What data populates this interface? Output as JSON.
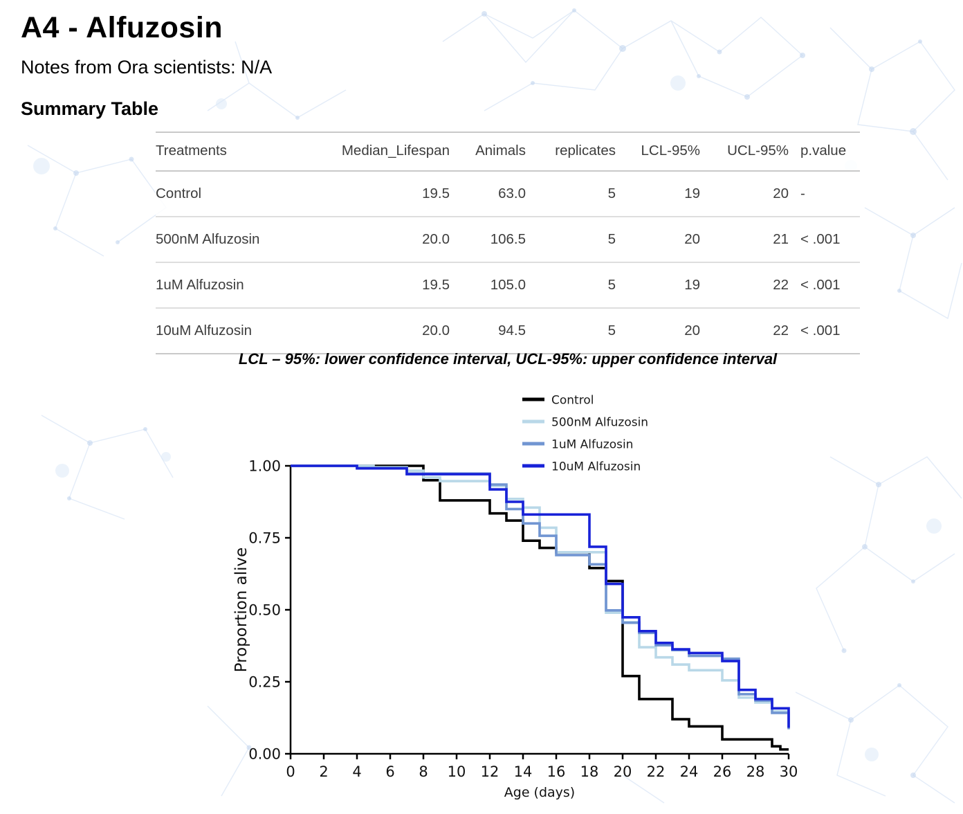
{
  "page": {
    "title": "A4 - Alfuzosin",
    "notes": "Notes from Ora scientists: N/A",
    "section_heading": "Summary Table",
    "footnote": "LCL – 95%: lower confidence interval, UCL-95%: upper confidence interval"
  },
  "summary_table": {
    "columns": [
      "Treatments",
      "Median_Lifespan",
      "Animals",
      "replicates",
      "LCL-95%",
      "UCL-95%",
      "p.value"
    ],
    "rows": [
      [
        "Control",
        "19.5",
        "63.0",
        "5",
        "19",
        "20",
        "-"
      ],
      [
        "500nM Alfuzosin",
        "20.0",
        "106.5",
        "5",
        "20",
        "21",
        "< .001"
      ],
      [
        "1uM Alfuzosin",
        "19.5",
        "105.0",
        "5",
        "19",
        "22",
        "< .001"
      ],
      [
        "10uM Alfuzosin",
        "20.0",
        "94.5",
        "5",
        "20",
        "22",
        "< .001"
      ]
    ]
  },
  "chart_data": {
    "type": "line",
    "subtype": "kaplan-meier-step",
    "title": "",
    "xlabel": "Age (days)",
    "ylabel": "Proportion alive",
    "xlim": [
      0,
      30
    ],
    "ylim": [
      0.0,
      1.0
    ],
    "x_ticks": [
      0,
      2,
      4,
      6,
      8,
      10,
      12,
      14,
      16,
      18,
      20,
      22,
      24,
      26,
      28,
      30
    ],
    "y_ticks": [
      "0.00",
      "0.25",
      "0.50",
      "0.75",
      "1.00"
    ],
    "grid": false,
    "legend_position": "top-right",
    "series": [
      {
        "name": "Control",
        "color": "#000000",
        "steps": [
          [
            0,
            1.0
          ],
          [
            8,
            0.95
          ],
          [
            9,
            0.88
          ],
          [
            12,
            0.835
          ],
          [
            13,
            0.81
          ],
          [
            14,
            0.74
          ],
          [
            15,
            0.715
          ],
          [
            16,
            0.7
          ],
          [
            18,
            0.645
          ],
          [
            19,
            0.6
          ],
          [
            20,
            0.27
          ],
          [
            21,
            0.19
          ],
          [
            23,
            0.12
          ],
          [
            24,
            0.095
          ],
          [
            26,
            0.05
          ],
          [
            29,
            0.026
          ],
          [
            29.5,
            0.015
          ]
        ]
      },
      {
        "name": "500nM Alfuzosin",
        "color": "#b9d8e8",
        "steps": [
          [
            0,
            1.0
          ],
          [
            5,
            0.995
          ],
          [
            7,
            0.983
          ],
          [
            8,
            0.96
          ],
          [
            9,
            0.947
          ],
          [
            12,
            0.93
          ],
          [
            13,
            0.885
          ],
          [
            14,
            0.855
          ],
          [
            15,
            0.785
          ],
          [
            16,
            0.7
          ],
          [
            19,
            0.49
          ],
          [
            20,
            0.457
          ],
          [
            21,
            0.37
          ],
          [
            22,
            0.335
          ],
          [
            23,
            0.31
          ],
          [
            24,
            0.29
          ],
          [
            26,
            0.255
          ],
          [
            27,
            0.195
          ],
          [
            28,
            0.178
          ],
          [
            29,
            0.147
          ]
        ]
      },
      {
        "name": "1uM Alfuzosin",
        "color": "#7195d2",
        "steps": [
          [
            0,
            1.0
          ],
          [
            4,
            0.993
          ],
          [
            7,
            0.973
          ],
          [
            12,
            0.935
          ],
          [
            13,
            0.85
          ],
          [
            14,
            0.8
          ],
          [
            15,
            0.757
          ],
          [
            16,
            0.69
          ],
          [
            18,
            0.658
          ],
          [
            19,
            0.498
          ],
          [
            20,
            0.455
          ],
          [
            21,
            0.42
          ],
          [
            22,
            0.377
          ],
          [
            23,
            0.36
          ],
          [
            24,
            0.34
          ],
          [
            26,
            0.33
          ],
          [
            27,
            0.207
          ],
          [
            28,
            0.185
          ],
          [
            29,
            0.142
          ],
          [
            30,
            0.085
          ]
        ]
      },
      {
        "name": "10uM Alfuzosin",
        "color": "#1822d8",
        "steps": [
          [
            0,
            1.0
          ],
          [
            4,
            0.991
          ],
          [
            7,
            0.971
          ],
          [
            12,
            0.918
          ],
          [
            13,
            0.875
          ],
          [
            14,
            0.831
          ],
          [
            18,
            0.719
          ],
          [
            19,
            0.59
          ],
          [
            20,
            0.474
          ],
          [
            21,
            0.426
          ],
          [
            22,
            0.385
          ],
          [
            23,
            0.363
          ],
          [
            24,
            0.35
          ],
          [
            26,
            0.322
          ],
          [
            27,
            0.222
          ],
          [
            28,
            0.19
          ],
          [
            29,
            0.158
          ],
          [
            30,
            0.09
          ]
        ]
      }
    ]
  }
}
